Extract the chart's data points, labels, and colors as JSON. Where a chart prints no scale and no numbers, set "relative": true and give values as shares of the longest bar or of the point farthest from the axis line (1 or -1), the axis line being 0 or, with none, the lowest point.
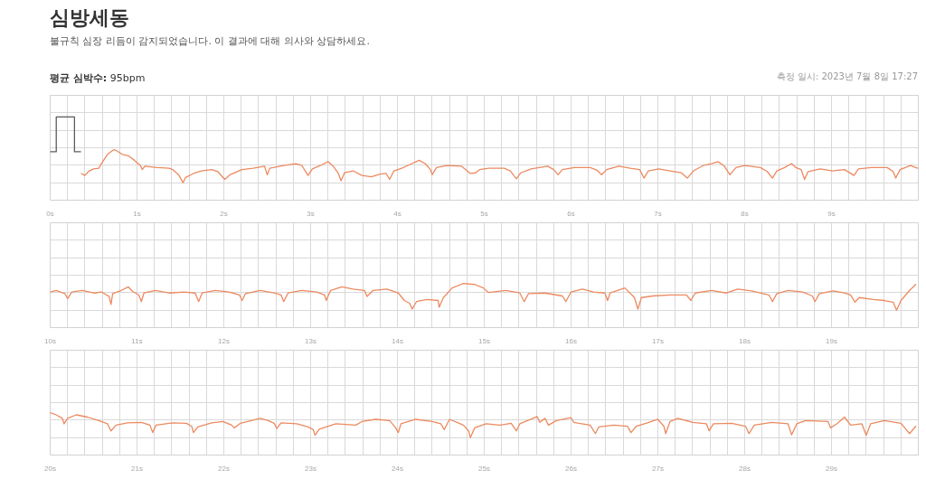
{
  "chart_data": [
    {
      "type": "line",
      "title": "심방세동",
      "subtitle": "불규칙 심장 리듬이 감지되었습니다. 이 결과에 대해 의사와 상담하세요.",
      "annotations": [
        "평균 심박수: 95bpm",
        "측정 일시: 2023년 7월 8일 17:27"
      ],
      "relative": true,
      "xlim": [
        0,
        10
      ],
      "xticks": [
        {
          "value": 0,
          "label": "0s"
        },
        {
          "value": 0.2,
          "label": null
        },
        {
          "value": 0.4,
          "label": null
        },
        {
          "value": 0.6,
          "label": null
        },
        {
          "value": 0.8,
          "label": null
        },
        {
          "value": 1,
          "label": "1s"
        },
        {
          "value": 1.2,
          "label": null
        },
        {
          "value": 1.4,
          "label": null
        },
        {
          "value": 1.6,
          "label": null
        },
        {
          "value": 1.8,
          "label": null
        },
        {
          "value": 2,
          "label": "2s"
        },
        {
          "value": 2.2,
          "label": null
        },
        {
          "value": 2.4,
          "label": null
        },
        {
          "value": 2.6,
          "label": null
        },
        {
          "value": 2.8,
          "label": null
        },
        {
          "value": 3,
          "label": "3s"
        },
        {
          "value": 3.2,
          "label": null
        },
        {
          "value": 3.4,
          "label": null
        },
        {
          "value": 3.6,
          "label": null
        },
        {
          "value": 3.8,
          "label": null
        },
        {
          "value": 4,
          "label": "4s"
        },
        {
          "value": 4.2,
          "label": null
        },
        {
          "value": 4.4,
          "label": null
        },
        {
          "value": 4.6,
          "label": null
        },
        {
          "value": 4.8,
          "label": null
        },
        {
          "value": 5,
          "label": "5s"
        },
        {
          "value": 5.2,
          "label": null
        },
        {
          "value": 5.4,
          "label": null
        },
        {
          "value": 5.6,
          "label": null
        },
        {
          "value": 5.8,
          "label": null
        },
        {
          "value": 6,
          "label": "6s"
        },
        {
          "value": 6.2,
          "label": null
        },
        {
          "value": 6.4,
          "label": null
        },
        {
          "value": 6.6,
          "label": null
        },
        {
          "value": 6.8,
          "label": null
        },
        {
          "value": 7,
          "label": "7s"
        },
        {
          "value": 7.2,
          "label": null
        },
        {
          "value": 7.4,
          "label": null
        },
        {
          "value": 7.6,
          "label": null
        },
        {
          "value": 7.8,
          "label": null
        },
        {
          "value": 8,
          "label": "8s"
        },
        {
          "value": 8.2,
          "label": null
        },
        {
          "value": 8.4,
          "label": null
        },
        {
          "value": 8.6,
          "label": null
        },
        {
          "value": 8.8,
          "label": null
        },
        {
          "value": 9,
          "label": "9s"
        },
        {
          "value": 9.2,
          "label": null
        },
        {
          "value": 9.4,
          "label": null
        },
        {
          "value": 9.6,
          "label": null
        },
        {
          "value": 9.8,
          "label": null
        }
      ],
      "grid": true,
      "series": [
        {
          "color": "#5a5a5a",
          "x": [
            0,
            0.07,
            0.07,
            0.28,
            0.28,
            0.35
          ],
          "values": [
            0.47,
            0.47,
            1,
            1,
            0.47,
            0.47
          ]
        },
        {
          "color": "#ec8a60",
          "x": [
            0.36,
            0.4,
            0.45,
            0.5,
            0.56,
            0.59,
            0.66,
            0.73,
            0.76,
            0.83,
            0.9,
            0.97,
            1.04,
            1.06,
            1.09,
            1.23,
            1.37,
            1.41,
            1.48,
            1.53,
            1.56,
            1.65,
            1.74,
            1.86,
            1.93,
            2.01,
            2.07,
            2.21,
            2.34,
            2.47,
            2.5,
            2.53,
            2.69,
            2.83,
            2.9,
            2.97,
            3.02,
            3.11,
            3.2,
            3.26,
            3.32,
            3.35,
            3.39,
            3.49,
            3.59,
            3.7,
            3.8,
            3.87,
            3.91,
            3.96,
            4.05,
            4.15,
            4.25,
            4.32,
            4.38,
            4.4,
            4.45,
            4.57,
            4.74,
            4.84,
            4.9,
            4.95,
            5.05,
            5.23,
            5.3,
            5.37,
            5.42,
            5.54,
            5.73,
            5.8,
            5.85,
            5.9,
            6.04,
            6.22,
            6.3,
            6.35,
            6.41,
            6.55,
            6.68,
            6.79,
            6.84,
            6.89,
            7.01,
            7.14,
            7.27,
            7.34,
            7.41,
            7.52,
            7.62,
            7.69,
            7.76,
            7.83,
            7.9,
            8.0,
            8.18,
            8.26,
            8.32,
            8.37,
            8.46,
            8.54,
            8.59,
            8.65,
            8.69,
            8.73,
            8.87,
            9.01,
            9.15,
            9.26,
            9.31,
            9.46,
            9.64,
            9.71,
            9.74,
            9.79,
            9.91,
            9.99
          ],
          "values": [
            0.14,
            0.11,
            0.18,
            0.21,
            0.22,
            0.29,
            0.43,
            0.5,
            0.49,
            0.43,
            0.41,
            0.34,
            0.26,
            0.2,
            0.25,
            0.23,
            0.22,
            0.2,
            0.12,
            0,
            0.08,
            0.14,
            0.18,
            0.2,
            0.17,
            0.05,
            0.12,
            0.2,
            0.22,
            0.25,
            0.12,
            0.22,
            0.26,
            0.29,
            0.26,
            0.11,
            0.21,
            0.26,
            0.32,
            0.25,
            0.14,
            0.03,
            0.15,
            0.18,
            0.11,
            0.09,
            0.13,
            0.14,
            0.05,
            0.18,
            0.22,
            0.28,
            0.34,
            0.29,
            0.2,
            0.12,
            0.23,
            0.26,
            0.25,
            0.14,
            0.15,
            0.2,
            0.22,
            0.22,
            0.18,
            0.06,
            0.15,
            0.21,
            0.25,
            0.2,
            0.12,
            0.2,
            0.23,
            0.23,
            0.19,
            0.12,
            0.2,
            0.25,
            0.22,
            0.2,
            0.07,
            0.18,
            0.21,
            0.18,
            0.15,
            0.07,
            0.18,
            0.26,
            0.29,
            0.32,
            0.26,
            0.12,
            0.23,
            0.26,
            0.23,
            0.17,
            0.07,
            0.18,
            0.23,
            0.29,
            0.23,
            0.2,
            0.05,
            0.17,
            0.21,
            0.18,
            0.2,
            0.11,
            0.21,
            0.23,
            0.23,
            0.17,
            0.07,
            0.2,
            0.26,
            0.22
          ]
        }
      ]
    },
    {
      "type": "line",
      "relative": true,
      "xlim": [
        10,
        20
      ],
      "xticks": [
        {
          "value": 10,
          "label": "10s"
        },
        {
          "value": 10.2,
          "label": null
        },
        {
          "value": 10.4,
          "label": null
        },
        {
          "value": 10.6,
          "label": null
        },
        {
          "value": 10.8,
          "label": null
        },
        {
          "value": 11,
          "label": "11s"
        },
        {
          "value": 11.2,
          "label": null
        },
        {
          "value": 11.4,
          "label": null
        },
        {
          "value": 11.6,
          "label": null
        },
        {
          "value": 11.8,
          "label": null
        },
        {
          "value": 12,
          "label": "12s"
        },
        {
          "value": 12.2,
          "label": null
        },
        {
          "value": 12.4,
          "label": null
        },
        {
          "value": 12.6,
          "label": null
        },
        {
          "value": 12.8,
          "label": null
        },
        {
          "value": 13,
          "label": "13s"
        },
        {
          "value": 13.2,
          "label": null
        },
        {
          "value": 13.4,
          "label": null
        },
        {
          "value": 13.6,
          "label": null
        },
        {
          "value": 13.8,
          "label": null
        },
        {
          "value": 14,
          "label": "14s"
        },
        {
          "value": 14.2,
          "label": null
        },
        {
          "value": 14.4,
          "label": null
        },
        {
          "value": 14.6,
          "label": null
        },
        {
          "value": 14.8,
          "label": null
        },
        {
          "value": 15,
          "label": "15s"
        },
        {
          "value": 15.2,
          "label": null
        },
        {
          "value": 15.4,
          "label": null
        },
        {
          "value": 15.6,
          "label": null
        },
        {
          "value": 15.8,
          "label": null
        },
        {
          "value": 16,
          "label": "16s"
        },
        {
          "value": 16.2,
          "label": null
        },
        {
          "value": 16.4,
          "label": null
        },
        {
          "value": 16.6,
          "label": null
        },
        {
          "value": 16.8,
          "label": null
        },
        {
          "value": 17,
          "label": "17s"
        },
        {
          "value": 17.2,
          "label": null
        },
        {
          "value": 17.4,
          "label": null
        },
        {
          "value": 17.6,
          "label": null
        },
        {
          "value": 17.8,
          "label": null
        },
        {
          "value": 18,
          "label": "18s"
        },
        {
          "value": 18.2,
          "label": null
        },
        {
          "value": 18.4,
          "label": null
        },
        {
          "value": 18.6,
          "label": null
        },
        {
          "value": 18.8,
          "label": null
        },
        {
          "value": 19,
          "label": "19s"
        },
        {
          "value": 19.2,
          "label": null
        },
        {
          "value": 19.4,
          "label": null
        },
        {
          "value": 19.6,
          "label": null
        },
        {
          "value": 19.8,
          "label": null
        }
      ],
      "grid": true,
      "series": [
        {
          "color": "#ec8a60",
          "x": [
            10.0,
            10.07,
            10.17,
            10.2,
            10.25,
            10.37,
            10.5,
            10.59,
            10.68,
            10.7,
            10.72,
            10.82,
            10.9,
            10.95,
            11.02,
            11.05,
            11.08,
            11.21,
            11.37,
            11.54,
            11.67,
            11.71,
            11.75,
            11.9,
            12.06,
            12.18,
            12.21,
            12.25,
            12.42,
            12.58,
            12.66,
            12.69,
            12.74,
            12.9,
            13.07,
            13.16,
            13.18,
            13.23,
            13.36,
            13.49,
            13.62,
            13.65,
            13.72,
            13.88,
            14.01,
            14.08,
            14.14,
            14.17,
            14.22,
            14.34,
            14.47,
            14.48,
            14.53,
            14.63,
            14.76,
            14.89,
            14.99,
            15.05,
            15.25,
            15.41,
            15.46,
            15.51,
            15.7,
            15.9,
            15.94,
            16.0,
            16.13,
            16.26,
            16.39,
            16.42,
            16.45,
            16.62,
            16.73,
            16.77,
            16.81,
            16.94,
            17.14,
            17.33,
            17.38,
            17.43,
            17.62,
            17.79,
            17.92,
            18.08,
            18.28,
            18.32,
            18.37,
            18.5,
            18.67,
            18.78,
            18.81,
            18.86,
            19.02,
            19.15,
            19.22,
            19.27,
            19.32,
            19.48,
            19.61,
            19.71,
            19.75,
            19.8,
            19.9,
            19.97
          ],
          "values": [
            0.68,
            0.74,
            0.62,
            0.43,
            0.68,
            0.74,
            0.64,
            0.68,
            0.51,
            0.21,
            0.62,
            0.74,
            0.87,
            0.7,
            0.57,
            0.32,
            0.64,
            0.74,
            0.64,
            0.68,
            0.64,
            0.32,
            0.64,
            0.74,
            0.68,
            0.57,
            0.36,
            0.62,
            0.74,
            0.64,
            0.57,
            0.32,
            0.64,
            0.74,
            0.68,
            0.57,
            0.36,
            0.74,
            0.87,
            0.79,
            0.74,
            0.51,
            0.74,
            0.79,
            0.64,
            0.36,
            0.26,
            0.04,
            0.32,
            0.4,
            0.36,
            0.11,
            0.47,
            0.83,
            1.0,
            0.96,
            0.83,
            0.66,
            0.74,
            0.64,
            0.32,
            0.62,
            0.64,
            0.53,
            0.32,
            0.68,
            0.79,
            0.68,
            0.64,
            0.36,
            0.64,
            0.83,
            0.47,
            0.04,
            0.47,
            0.53,
            0.57,
            0.57,
            0.36,
            0.64,
            0.74,
            0.64,
            0.79,
            0.72,
            0.57,
            0.32,
            0.62,
            0.74,
            0.68,
            0.53,
            0.32,
            0.62,
            0.72,
            0.64,
            0.57,
            0.3,
            0.47,
            0.4,
            0.36,
            0.3,
            0,
            0.36,
            0.74,
            0.96
          ]
        }
      ]
    },
    {
      "type": "line",
      "relative": true,
      "xlim": [
        20,
        30
      ],
      "xticks": [
        {
          "value": 20,
          "label": "20s"
        },
        {
          "value": 20.2,
          "label": null
        },
        {
          "value": 20.4,
          "label": null
        },
        {
          "value": 20.6,
          "label": null
        },
        {
          "value": 20.8,
          "label": null
        },
        {
          "value": 21,
          "label": "21s"
        },
        {
          "value": 21.2,
          "label": null
        },
        {
          "value": 21.4,
          "label": null
        },
        {
          "value": 21.6,
          "label": null
        },
        {
          "value": 21.8,
          "label": null
        },
        {
          "value": 22,
          "label": "22s"
        },
        {
          "value": 22.2,
          "label": null
        },
        {
          "value": 22.4,
          "label": null
        },
        {
          "value": 22.6,
          "label": null
        },
        {
          "value": 22.8,
          "label": null
        },
        {
          "value": 23,
          "label": "23s"
        },
        {
          "value": 23.2,
          "label": null
        },
        {
          "value": 23.4,
          "label": null
        },
        {
          "value": 23.6,
          "label": null
        },
        {
          "value": 23.8,
          "label": null
        },
        {
          "value": 24,
          "label": "24s"
        },
        {
          "value": 24.2,
          "label": null
        },
        {
          "value": 24.4,
          "label": null
        },
        {
          "value": 24.6,
          "label": null
        },
        {
          "value": 24.8,
          "label": null
        },
        {
          "value": 25,
          "label": "25s"
        },
        {
          "value": 25.2,
          "label": null
        },
        {
          "value": 25.4,
          "label": null
        },
        {
          "value": 25.6,
          "label": null
        },
        {
          "value": 25.8,
          "label": null
        },
        {
          "value": 26,
          "label": "26s"
        },
        {
          "value": 26.2,
          "label": null
        },
        {
          "value": 26.4,
          "label": null
        },
        {
          "value": 26.6,
          "label": null
        },
        {
          "value": 26.8,
          "label": null
        },
        {
          "value": 27,
          "label": "27s"
        },
        {
          "value": 27.2,
          "label": null
        },
        {
          "value": 27.4,
          "label": null
        },
        {
          "value": 27.6,
          "label": null
        },
        {
          "value": 27.8,
          "label": null
        },
        {
          "value": 28,
          "label": "28s"
        },
        {
          "value": 28.2,
          "label": null
        },
        {
          "value": 28.4,
          "label": null
        },
        {
          "value": 28.6,
          "label": null
        },
        {
          "value": 28.8,
          "label": null
        },
        {
          "value": 29,
          "label": "29s"
        },
        {
          "value": 29.2,
          "label": null
        },
        {
          "value": 29.4,
          "label": null
        },
        {
          "value": 29.6,
          "label": null
        },
        {
          "value": 29.8,
          "label": null
        }
      ],
      "grid": true,
      "series": [
        {
          "color": "#ec8a60",
          "x": [
            20.0,
            20.07,
            20.14,
            20.16,
            20.2,
            20.3,
            20.43,
            20.56,
            20.66,
            20.7,
            20.76,
            20.89,
            21.05,
            21.15,
            21.18,
            21.22,
            21.41,
            21.57,
            21.63,
            21.65,
            21.7,
            21.86,
            21.99,
            22.09,
            22.12,
            22.19,
            22.42,
            22.51,
            22.58,
            22.61,
            22.66,
            22.84,
            22.97,
            23.03,
            23.05,
            23.1,
            23.29,
            23.52,
            23.59,
            23.75,
            23.91,
            23.98,
            24.01,
            24.04,
            24.21,
            24.4,
            24.5,
            24.54,
            24.6,
            24.76,
            24.82,
            24.84,
            24.89,
            25.02,
            25.18,
            25.31,
            25.37,
            25.41,
            25.61,
            25.64,
            25.7,
            25.74,
            25.83,
            26.0,
            26.03,
            26.09,
            26.22,
            26.28,
            26.32,
            26.49,
            26.65,
            26.69,
            26.75,
            26.88,
            27.0,
            27.07,
            27.09,
            27.14,
            27.23,
            27.4,
            27.56,
            27.59,
            27.64,
            27.85,
            28.01,
            28.05,
            28.11,
            28.31,
            28.5,
            28.54,
            28.6,
            28.7,
            28.96,
            28.99,
            29.06,
            29.15,
            29.22,
            29.35,
            29.4,
            29.45,
            29.61,
            29.8,
            29.9,
            29.97
          ],
          "values": [
            1.0,
            0.91,
            0.77,
            0.55,
            0.77,
            0.91,
            0.82,
            0.68,
            0.55,
            0.27,
            0.5,
            0.59,
            0.61,
            0.5,
            0.2,
            0.5,
            0.59,
            0.57,
            0.45,
            0.2,
            0.43,
            0.59,
            0.64,
            0.5,
            0.39,
            0.57,
            0.77,
            0.68,
            0.57,
            0.36,
            0.59,
            0.55,
            0.43,
            0.32,
            0.09,
            0.34,
            0.55,
            0.5,
            0.64,
            0.73,
            0.68,
            0.39,
            0.2,
            0.55,
            0.73,
            0.64,
            0.55,
            0.32,
            0.73,
            0.5,
            0.27,
            0,
            0.39,
            0.55,
            0.5,
            0.57,
            0.27,
            0.55,
            0.84,
            0.61,
            0.77,
            0.5,
            0.68,
            0.8,
            0.61,
            0.57,
            0.5,
            0.16,
            0.43,
            0.5,
            0.45,
            0.2,
            0.45,
            0.59,
            0.73,
            0.45,
            0.16,
            0.64,
            0.77,
            0.61,
            0.55,
            0.27,
            0.55,
            0.57,
            0.45,
            0.16,
            0.5,
            0.61,
            0.55,
            0.11,
            0.55,
            0.68,
            0.64,
            0.39,
            0.55,
            0.82,
            0.5,
            0.55,
            0.09,
            0.55,
            0.68,
            0.57,
            0.16,
            0.45
          ]
        }
      ]
    }
  ]
}
